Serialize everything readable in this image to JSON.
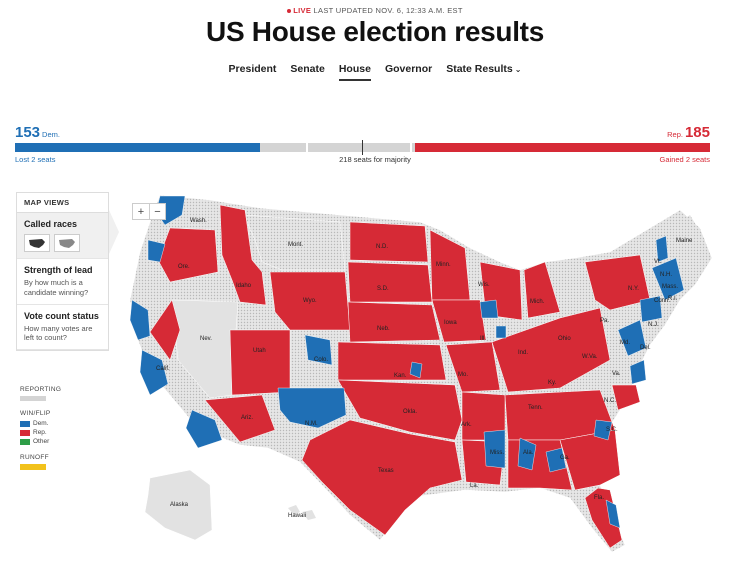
{
  "header": {
    "live_label": "LIVE",
    "updated": "LAST UPDATED NOV. 6, 12:33 A.M. EST",
    "title": "US House election results"
  },
  "nav": {
    "items": [
      "President",
      "Senate",
      "House",
      "Governor",
      "State Results"
    ],
    "active": "House"
  },
  "tally": {
    "dem_count": "153",
    "dem_label": "Dem.",
    "rep_count": "185",
    "rep_label": "Rep.",
    "dem_change": "Lost 2 seats",
    "rep_change": "Gained 2 seats",
    "majority": "218 seats for majority",
    "dem_fraction": 0.352,
    "rep_fraction": 0.425
  },
  "map_views": {
    "heading": "MAP VIEWS",
    "options": [
      {
        "title": "Called races",
        "desc": ""
      },
      {
        "title": "Strength of lead",
        "desc": "By how much is a candidate winning?"
      },
      {
        "title": "Vote count status",
        "desc": "How many votes are left to count?"
      }
    ]
  },
  "legend": {
    "reporting_label": "REPORTING",
    "win_flip_label": "WIN/FLIP",
    "runoff_label": "RUNOFF",
    "entries": [
      {
        "name": "Dem.",
        "color": "#1f6fb5"
      },
      {
        "name": "Rep.",
        "color": "#d62a36"
      },
      {
        "name": "Other",
        "color": "#2e9e48"
      }
    ],
    "runoff_color": "#f2c21b",
    "reporting_color": "#d4d4d4"
  },
  "colors": {
    "dem": "#1f6fb5",
    "rep": "#d62a36",
    "reporting": "#d4d4d4"
  },
  "map_labels": [
    "Wash.",
    "Mont.",
    "N.D.",
    "Minn.",
    "Ore.",
    "Idaho",
    "S.D.",
    "Wyo.",
    "Wis.",
    "Mich.",
    "N.Y.",
    "Vt.",
    "N.H.",
    "Maine",
    "Mass.",
    "Conn.",
    "R.I.",
    "Nev.",
    "Neb.",
    "Iowa",
    "Ill.",
    "Ind.",
    "Ohio",
    "Pa.",
    "N.J.",
    "Md.",
    "Del.",
    "Calif.",
    "Utah",
    "Colo.",
    "Kan.",
    "Mo.",
    "Ky.",
    "W.Va.",
    "Va.",
    "Ariz.",
    "N.M.",
    "Okla.",
    "Ark.",
    "Tenn.",
    "N.C.",
    "S.C.",
    "Miss.",
    "Ala.",
    "Ga.",
    "Texas",
    "La.",
    "Fla.",
    "Alaska",
    "Hawaii"
  ]
}
